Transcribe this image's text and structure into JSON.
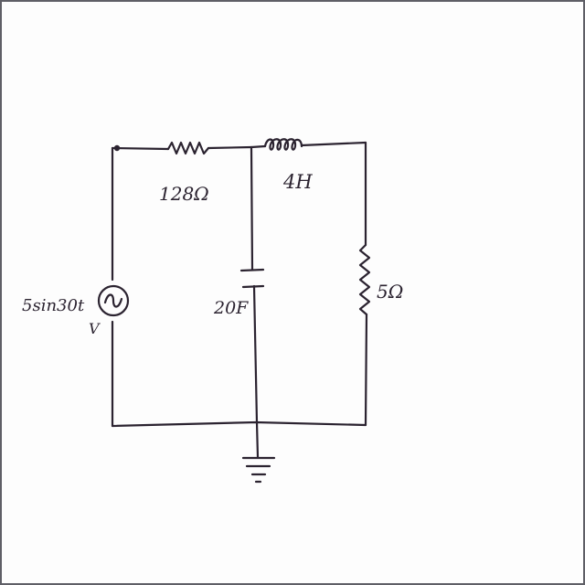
{
  "diagram": {
    "components": {
      "resistor_1": {
        "label": "128Ω"
      },
      "inductor": {
        "label": "4H"
      },
      "resistor_2": {
        "label": "5Ω"
      },
      "capacitor": {
        "label": "20F"
      },
      "source": {
        "label": "5sin30t",
        "unit": "V"
      }
    },
    "colors": {
      "ink": "#2b2330",
      "paper": "#fdfdfd",
      "border": "#5f5f66"
    }
  }
}
